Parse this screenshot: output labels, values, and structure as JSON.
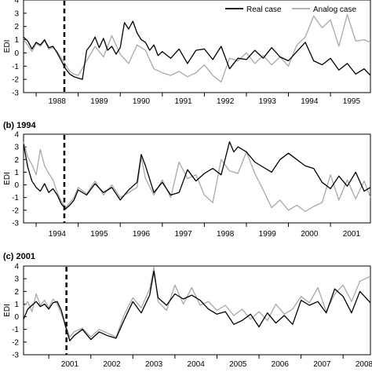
{
  "legend": {
    "real": "Real case",
    "analog": "Analog case",
    "real_color": "#000000",
    "analog_color": "#a8a8a8"
  },
  "chart_data": [
    {
      "type": "line",
      "title": "",
      "ylabel": "EDI",
      "xlabel": "",
      "xlim": [
        1987.7,
        1995.95
      ],
      "ylim": [
        -3,
        4
      ],
      "yticks": [
        -3,
        -2,
        -1,
        0,
        1,
        2,
        3,
        4
      ],
      "xtick_labels": [
        "1988",
        "1989",
        "1990",
        "1991",
        "1992",
        "1993",
        "1994",
        "1995"
      ],
      "event_line_x": 1988.67,
      "legend_position": "top-right",
      "series": [
        {
          "name": "Real case",
          "x": [
            1987.7,
            1987.8,
            1987.9,
            1988.0,
            1988.1,
            1988.2,
            1988.3,
            1988.4,
            1988.5,
            1988.6,
            1988.7,
            1988.8,
            1988.9,
            1989.0,
            1989.1,
            1989.2,
            1989.3,
            1989.4,
            1989.5,
            1989.6,
            1989.7,
            1989.8,
            1989.9,
            1990.0,
            1990.1,
            1990.2,
            1990.3,
            1990.4,
            1990.5,
            1990.6,
            1990.7,
            1990.8,
            1990.9,
            1991.0,
            1991.2,
            1991.4,
            1991.6,
            1991.8,
            1992.0,
            1992.2,
            1992.4,
            1992.6,
            1992.8,
            1993.0,
            1993.2,
            1993.4,
            1993.6,
            1993.8,
            1994.0,
            1994.2,
            1994.4,
            1994.6,
            1994.8,
            1995.0,
            1995.2,
            1995.4,
            1995.6,
            1995.8,
            1995.95
          ],
          "y": [
            1.2,
            0.9,
            0.3,
            0.8,
            0.6,
            1.0,
            0.4,
            0.5,
            0.0,
            -0.6,
            -1.2,
            -1.6,
            -1.8,
            -1.9,
            -2.0,
            0.2,
            0.6,
            1.2,
            0.4,
            1.1,
            0.2,
            0.5,
            -0.1,
            0.4,
            2.3,
            1.8,
            2.4,
            1.5,
            1.0,
            0.8,
            0.2,
            0.6,
            -0.2,
            0.1,
            -0.4,
            0.3,
            -0.8,
            0.2,
            0.3,
            -0.5,
            0.5,
            -1.2,
            -0.4,
            -0.5,
            0.2,
            -0.4,
            0.4,
            -0.3,
            -0.6,
            0.1,
            0.8,
            -0.6,
            -0.9,
            -0.4,
            -1.3,
            -0.8,
            -1.6,
            -1.2,
            -1.7
          ]
        },
        {
          "name": "Analog case",
          "x": [
            1987.7,
            1987.8,
            1987.9,
            1988.0,
            1988.1,
            1988.2,
            1988.3,
            1988.4,
            1988.5,
            1988.6,
            1988.7,
            1988.8,
            1988.9,
            1989.0,
            1989.2,
            1989.4,
            1989.6,
            1989.8,
            1990.0,
            1990.2,
            1990.4,
            1990.6,
            1990.8,
            1991.0,
            1991.2,
            1991.4,
            1991.6,
            1991.8,
            1992.0,
            1992.2,
            1992.4,
            1992.6,
            1992.8,
            1993.0,
            1993.2,
            1993.4,
            1993.6,
            1993.8,
            1994.0,
            1994.2,
            1994.4,
            1994.6,
            1994.8,
            1995.0,
            1995.2,
            1995.4,
            1995.6,
            1995.8,
            1995.95
          ],
          "y": [
            1.0,
            0.6,
            0.1,
            0.7,
            0.5,
            0.9,
            0.3,
            0.4,
            0.1,
            -0.4,
            -0.9,
            -1.4,
            -1.6,
            -1.7,
            -0.6,
            0.5,
            -0.3,
            1.3,
            -0.1,
            -0.8,
            0.6,
            0.2,
            -1.2,
            -1.5,
            -1.7,
            -1.4,
            -1.8,
            -1.5,
            -0.9,
            -1.7,
            -2.2,
            -0.4,
            -0.6,
            0.0,
            -0.8,
            -0.2,
            -0.9,
            -0.3,
            -1.0,
            0.6,
            1.2,
            2.8,
            1.9,
            2.5,
            0.5,
            2.9,
            0.9,
            1.0,
            0.8
          ]
        }
      ]
    },
    {
      "type": "line",
      "title": "(b) 1994",
      "ylabel": "EDI",
      "xlabel": "",
      "xlim": [
        1993.7,
        2001.95
      ],
      "ylim": [
        -3,
        4
      ],
      "yticks": [
        -3,
        -2,
        -1,
        0,
        1,
        2,
        3,
        4
      ],
      "xtick_labels": [
        "1994",
        "1995",
        "1996",
        "1997",
        "1998",
        "1999",
        "2000",
        "2001"
      ],
      "event_line_x": 1994.67,
      "series": [
        {
          "name": "Real case",
          "x": [
            1993.7,
            1993.8,
            1993.9,
            1994.0,
            1994.1,
            1994.2,
            1994.3,
            1994.4,
            1994.5,
            1994.6,
            1994.7,
            1994.8,
            1994.9,
            1995.0,
            1995.2,
            1995.4,
            1995.6,
            1995.8,
            1996.0,
            1996.2,
            1996.4,
            1996.5,
            1996.6,
            1996.8,
            1997.0,
            1997.2,
            1997.4,
            1997.6,
            1997.8,
            1998.0,
            1998.2,
            1998.4,
            1998.6,
            1998.7,
            1998.8,
            1999.0,
            1999.2,
            1999.4,
            1999.6,
            1999.8,
            2000.0,
            2000.2,
            2000.4,
            2000.6,
            2000.8,
            2001.0,
            2001.2,
            2001.4,
            2001.6,
            2001.8,
            2001.95
          ],
          "y": [
            3.2,
            1.4,
            0.3,
            -0.2,
            -0.5,
            0.1,
            -0.6,
            -0.3,
            -0.8,
            -1.5,
            -1.9,
            -1.6,
            -1.2,
            -0.4,
            -0.8,
            0.1,
            -0.6,
            -0.2,
            -1.2,
            -0.4,
            0.2,
            2.4,
            1.5,
            -0.6,
            0.2,
            -0.8,
            -0.6,
            1.2,
            0.3,
            0.9,
            1.3,
            0.8,
            3.4,
            2.6,
            3.0,
            2.6,
            1.8,
            1.4,
            1.0,
            2.0,
            2.5,
            2.0,
            1.5,
            1.3,
            0.2,
            -0.3,
            0.7,
            -0.1,
            1.0,
            -0.5,
            -0.2
          ]
        },
        {
          "name": "Analog case",
          "x": [
            1993.7,
            1993.8,
            1993.9,
            1994.0,
            1994.1,
            1994.2,
            1994.3,
            1994.4,
            1994.5,
            1994.6,
            1994.7,
            1994.8,
            1994.9,
            1995.0,
            1995.2,
            1995.4,
            1995.6,
            1995.8,
            1996.0,
            1996.2,
            1996.4,
            1996.5,
            1996.6,
            1996.8,
            1997.0,
            1997.2,
            1997.4,
            1997.6,
            1997.8,
            1998.0,
            1998.2,
            1998.4,
            1998.6,
            1998.8,
            1999.0,
            1999.2,
            1999.4,
            1999.6,
            1999.8,
            2000.0,
            2000.2,
            2000.4,
            2000.6,
            2000.8,
            2001.0,
            2001.2,
            2001.4,
            2001.6,
            2001.8,
            2001.95
          ],
          "y": [
            3.4,
            2.2,
            1.6,
            0.8,
            2.8,
            1.5,
            0.9,
            0.4,
            -0.6,
            -1.3,
            -1.8,
            -1.4,
            -1.0,
            -0.2,
            -0.7,
            0.3,
            -0.8,
            0.0,
            -1.0,
            -0.6,
            -0.2,
            2.2,
            0.5,
            -0.8,
            0.4,
            -1.0,
            1.8,
            0.5,
            0.8,
            -0.8,
            -1.4,
            2.0,
            1.1,
            0.9,
            2.6,
            0.9,
            -0.4,
            -1.8,
            -1.2,
            -2.0,
            -1.6,
            -2.1,
            -1.7,
            -1.4,
            0.8,
            -1.2,
            0.4,
            -1.1,
            0.3,
            -1.0
          ]
        }
      ]
    },
    {
      "type": "line",
      "title": "(c) 2001",
      "ylabel": "EDI",
      "xlabel": "",
      "xlim": [
        2000.4,
        2008.65
      ],
      "ylim": [
        -3,
        4
      ],
      "yticks": [
        -3,
        -2,
        -1,
        0,
        1,
        2,
        3,
        4
      ],
      "xtick_labels": [
        "2001",
        "2002",
        "2003",
        "2004",
        "2005",
        "2006",
        "2007",
        "2008"
      ],
      "event_line_x": 2001.42,
      "series": [
        {
          "name": "Real case",
          "x": [
            2000.4,
            2000.5,
            2000.6,
            2000.7,
            2000.8,
            2000.9,
            2001.0,
            2001.1,
            2001.2,
            2001.3,
            2001.4,
            2001.5,
            2001.6,
            2001.8,
            2002.0,
            2002.2,
            2002.4,
            2002.6,
            2002.8,
            2003.0,
            2003.2,
            2003.4,
            2003.5,
            2003.6,
            2003.8,
            2004.0,
            2004.2,
            2004.4,
            2004.6,
            2004.8,
            2005.0,
            2005.2,
            2005.4,
            2005.6,
            2005.8,
            2006.0,
            2006.2,
            2006.4,
            2006.6,
            2006.8,
            2007.0,
            2007.2,
            2007.4,
            2007.6,
            2007.8,
            2008.0,
            2008.2,
            2008.4,
            2008.65
          ],
          "y": [
            -0.2,
            0.6,
            0.9,
            1.2,
            0.8,
            1.0,
            0.6,
            1.1,
            1.2,
            0.5,
            -0.8,
            -1.9,
            -1.5,
            -1.0,
            -1.8,
            -1.2,
            -1.5,
            -1.7,
            -0.2,
            1.2,
            0.3,
            1.7,
            3.6,
            1.5,
            0.9,
            1.8,
            1.4,
            1.7,
            1.3,
            0.6,
            0.2,
            0.4,
            -0.6,
            -0.3,
            0.2,
            -0.8,
            0.3,
            -0.5,
            0.1,
            -0.6,
            1.3,
            0.9,
            1.2,
            0.3,
            2.2,
            1.6,
            0.3,
            2.0,
            1.1
          ]
        },
        {
          "name": "Analog case",
          "x": [
            2000.4,
            2000.5,
            2000.6,
            2000.7,
            2000.8,
            2000.9,
            2001.0,
            2001.1,
            2001.2,
            2001.3,
            2001.4,
            2001.5,
            2001.6,
            2001.8,
            2002.0,
            2002.2,
            2002.4,
            2002.6,
            2002.8,
            2003.0,
            2003.2,
            2003.4,
            2003.5,
            2003.6,
            2003.8,
            2004.0,
            2004.2,
            2004.4,
            2004.6,
            2004.8,
            2005.0,
            2005.2,
            2005.4,
            2005.6,
            2005.8,
            2006.0,
            2006.2,
            2006.4,
            2006.6,
            2006.8,
            2007.0,
            2007.2,
            2007.4,
            2007.6,
            2007.8,
            2008.0,
            2008.2,
            2008.4,
            2008.65
          ],
          "y": [
            0.8,
            1.2,
            0.4,
            1.8,
            0.9,
            1.3,
            0.7,
            1.4,
            1.0,
            0.2,
            -0.6,
            -1.6,
            -1.2,
            -0.9,
            -1.6,
            -1.0,
            -1.3,
            -1.6,
            0.2,
            1.5,
            0.7,
            2.2,
            3.9,
            1.2,
            0.5,
            2.5,
            1.0,
            2.3,
            0.9,
            1.2,
            0.5,
            0.9,
            0.1,
            0.6,
            -0.2,
            0.4,
            -0.3,
            1.0,
            0.2,
            0.6,
            1.6,
            1.1,
            2.3,
            0.4,
            1.8,
            2.5,
            1.2,
            2.8,
            3.2
          ]
        }
      ]
    }
  ]
}
